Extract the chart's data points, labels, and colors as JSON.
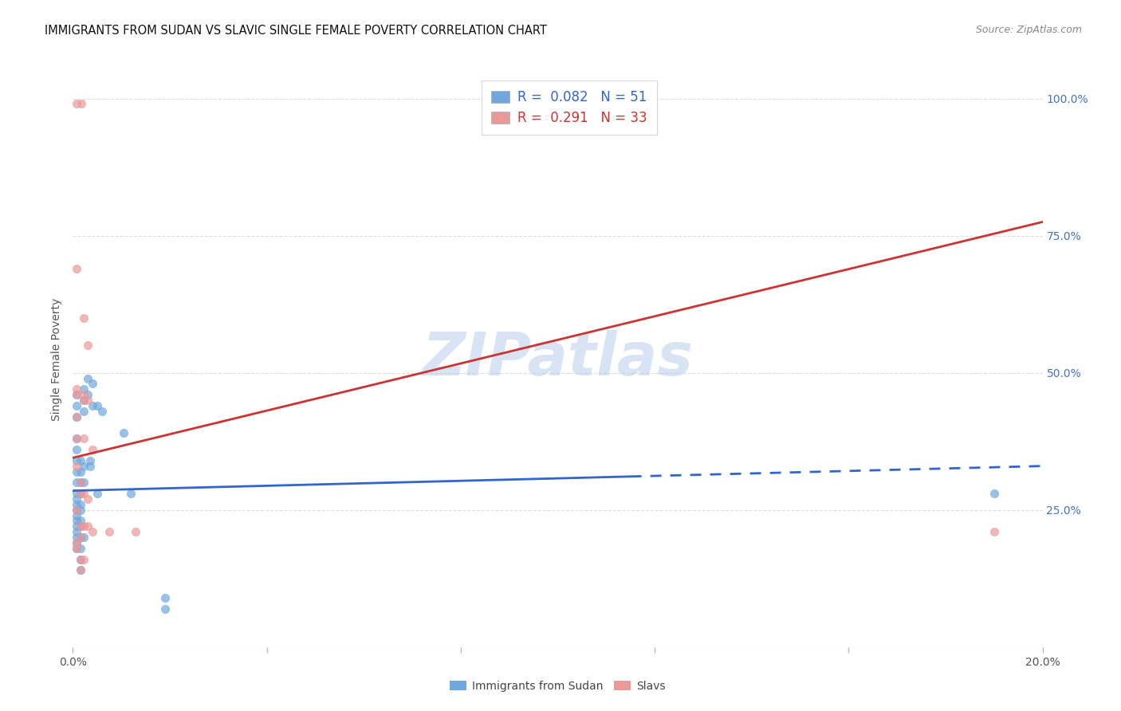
{
  "title": "IMMIGRANTS FROM SUDAN VS SLAVIC SINGLE FEMALE POVERTY CORRELATION CHART",
  "source": "Source: ZipAtlas.com",
  "ylabel": "Single Female Poverty",
  "right_ylabel_color": "#4472c4",
  "watermark": "ZIPatlas",
  "legend_sudan_r": "0.082",
  "legend_sudan_n": "51",
  "legend_slavs_r": "0.291",
  "legend_slavs_n": "33",
  "sudan_color": "#6fa8dc",
  "slavs_color": "#ea9999",
  "sudan_line_color": "#3366cc",
  "slavs_line_color": "#cc3333",
  "background_color": "#ffffff",
  "grid_color": "#dddddd",
  "sudan_points": [
    [
      0.0008,
      0.3
    ],
    [
      0.0008,
      0.46
    ],
    [
      0.0008,
      0.44
    ],
    [
      0.0008,
      0.42
    ],
    [
      0.0008,
      0.38
    ],
    [
      0.0008,
      0.36
    ],
    [
      0.0008,
      0.34
    ],
    [
      0.0008,
      0.32
    ],
    [
      0.0008,
      0.28
    ],
    [
      0.0008,
      0.26
    ],
    [
      0.0008,
      0.25
    ],
    [
      0.0008,
      0.27
    ],
    [
      0.0008,
      0.24
    ],
    [
      0.0008,
      0.23
    ],
    [
      0.0008,
      0.22
    ],
    [
      0.0008,
      0.21
    ],
    [
      0.0008,
      0.2
    ],
    [
      0.0008,
      0.19
    ],
    [
      0.0008,
      0.18
    ],
    [
      0.0015,
      0.34
    ],
    [
      0.0015,
      0.32
    ],
    [
      0.0015,
      0.3
    ],
    [
      0.0015,
      0.28
    ],
    [
      0.0015,
      0.26
    ],
    [
      0.0015,
      0.25
    ],
    [
      0.0015,
      0.23
    ],
    [
      0.0015,
      0.22
    ],
    [
      0.0015,
      0.2
    ],
    [
      0.0015,
      0.18
    ],
    [
      0.0015,
      0.16
    ],
    [
      0.0015,
      0.14
    ],
    [
      0.0022,
      0.47
    ],
    [
      0.0022,
      0.45
    ],
    [
      0.0022,
      0.43
    ],
    [
      0.0022,
      0.33
    ],
    [
      0.0022,
      0.3
    ],
    [
      0.0022,
      0.2
    ],
    [
      0.003,
      0.49
    ],
    [
      0.003,
      0.46
    ],
    [
      0.0035,
      0.34
    ],
    [
      0.0035,
      0.33
    ],
    [
      0.004,
      0.48
    ],
    [
      0.004,
      0.44
    ],
    [
      0.005,
      0.44
    ],
    [
      0.005,
      0.28
    ],
    [
      0.006,
      0.43
    ],
    [
      0.0105,
      0.39
    ],
    [
      0.012,
      0.28
    ],
    [
      0.019,
      0.09
    ],
    [
      0.019,
      0.07
    ],
    [
      0.19,
      0.28
    ]
  ],
  "slavs_points": [
    [
      0.0008,
      0.99
    ],
    [
      0.0018,
      0.99
    ],
    [
      0.0008,
      0.69
    ],
    [
      0.0022,
      0.6
    ],
    [
      0.003,
      0.55
    ],
    [
      0.0008,
      0.47
    ],
    [
      0.0008,
      0.46
    ],
    [
      0.0022,
      0.46
    ],
    [
      0.0022,
      0.45
    ],
    [
      0.003,
      0.45
    ],
    [
      0.0008,
      0.42
    ],
    [
      0.0008,
      0.38
    ],
    [
      0.0022,
      0.38
    ],
    [
      0.004,
      0.36
    ],
    [
      0.0008,
      0.33
    ],
    [
      0.0015,
      0.3
    ],
    [
      0.0015,
      0.28
    ],
    [
      0.0022,
      0.28
    ],
    [
      0.003,
      0.27
    ],
    [
      0.0008,
      0.25
    ],
    [
      0.0015,
      0.22
    ],
    [
      0.0015,
      0.2
    ],
    [
      0.0022,
      0.22
    ],
    [
      0.003,
      0.22
    ],
    [
      0.0008,
      0.19
    ],
    [
      0.0008,
      0.18
    ],
    [
      0.0015,
      0.16
    ],
    [
      0.0015,
      0.14
    ],
    [
      0.0022,
      0.16
    ],
    [
      0.004,
      0.21
    ],
    [
      0.0075,
      0.21
    ],
    [
      0.013,
      0.21
    ],
    [
      0.19,
      0.21
    ]
  ],
  "xlim": [
    0.0,
    0.2
  ],
  "ylim": [
    0.0,
    1.05
  ],
  "x_ticks": [
    0.0,
    0.04,
    0.08,
    0.12,
    0.16,
    0.2
  ],
  "y_ticks": [
    0.0,
    0.25,
    0.5,
    0.75,
    1.0
  ],
  "sudan_trend_x": [
    0.0,
    0.2
  ],
  "sudan_trend_y": [
    0.285,
    0.33
  ],
  "sudan_dashed_from": 0.115,
  "slavs_trend_x": [
    0.0,
    0.2
  ],
  "slavs_trend_y": [
    0.345,
    0.775
  ]
}
